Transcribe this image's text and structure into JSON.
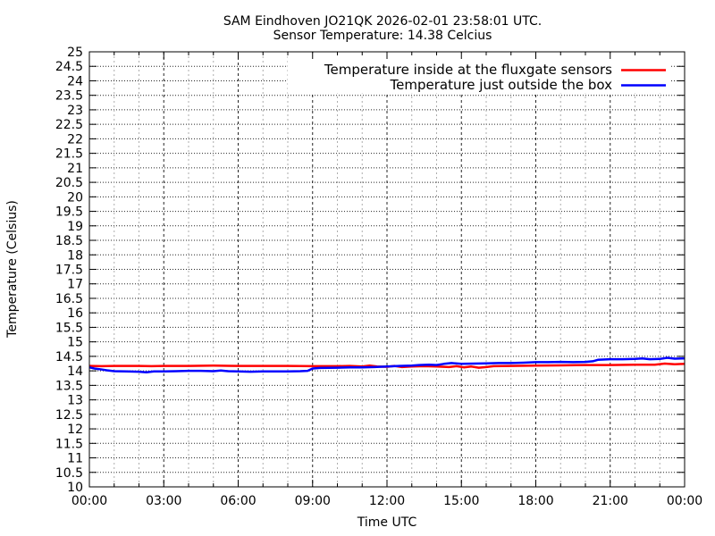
{
  "chart_data": {
    "type": "line",
    "title_lines": [
      "SAM Eindhoven JO21QK 2026-02-01 23:58:01 UTC.",
      "Sensor Temperature: 14.38 Celcius"
    ],
    "xlabel": "Time UTC",
    "ylabel": "Temperature (Celsius)",
    "xlim": [
      0,
      24
    ],
    "ylim": [
      10,
      25
    ],
    "y_tick_interval": 0.5,
    "x_major_tick_hours": 3,
    "x_minor_tick_hours": 1,
    "x_tick_labels": [
      "00:00",
      "03:00",
      "06:00",
      "09:00",
      "12:00",
      "15:00",
      "18:00",
      "21:00",
      "00:00"
    ],
    "grid": true,
    "legend_position": "top-right-inside",
    "background_color": "#ffffff",
    "series": [
      {
        "name": "Temperature inside at the fluxgate sensors",
        "color": "#ff0000",
        "points": [
          [
            0,
            14.17
          ],
          [
            0.5,
            14.16
          ],
          [
            1,
            14.17
          ],
          [
            1.5,
            14.17
          ],
          [
            2,
            14.17
          ],
          [
            2.5,
            14.16
          ],
          [
            3,
            14.17
          ],
          [
            4,
            14.17
          ],
          [
            5,
            14.18
          ],
          [
            6,
            14.17
          ],
          [
            7,
            14.17
          ],
          [
            8,
            14.17
          ],
          [
            9,
            14.16
          ],
          [
            10,
            14.16
          ],
          [
            10.5,
            14.17
          ],
          [
            11,
            14.15
          ],
          [
            11.3,
            14.18
          ],
          [
            11.6,
            14.15
          ],
          [
            12,
            14.14
          ],
          [
            12.3,
            14.17
          ],
          [
            12.6,
            14.13
          ],
          [
            13,
            14.15
          ],
          [
            13.5,
            14.16
          ],
          [
            14,
            14.15
          ],
          [
            14.5,
            14.13
          ],
          [
            14.8,
            14.16
          ],
          [
            15.1,
            14.12
          ],
          [
            15.4,
            14.15
          ],
          [
            15.7,
            14.11
          ],
          [
            16,
            14.13
          ],
          [
            16.3,
            14.16
          ],
          [
            17,
            14.17
          ],
          [
            18,
            14.18
          ],
          [
            19,
            14.19
          ],
          [
            20,
            14.2
          ],
          [
            21,
            14.2
          ],
          [
            22,
            14.21
          ],
          [
            22.8,
            14.21
          ],
          [
            23.2,
            14.25
          ],
          [
            23.6,
            14.23
          ],
          [
            24,
            14.24
          ]
        ]
      },
      {
        "name": "Temperature just outside the box",
        "color": "#0000ff",
        "points": [
          [
            0,
            14.12
          ],
          [
            0.2,
            14.08
          ],
          [
            0.4,
            14.06
          ],
          [
            0.7,
            14.02
          ],
          [
            1,
            13.99
          ],
          [
            1.5,
            13.98
          ],
          [
            2,
            13.97
          ],
          [
            2.3,
            13.95
          ],
          [
            2.6,
            13.98
          ],
          [
            3,
            13.98
          ],
          [
            3.5,
            13.99
          ],
          [
            4,
            14.0
          ],
          [
            4.5,
            14.0
          ],
          [
            5,
            13.99
          ],
          [
            5.3,
            14.01
          ],
          [
            5.6,
            13.99
          ],
          [
            6,
            13.98
          ],
          [
            6.5,
            13.97
          ],
          [
            7,
            13.98
          ],
          [
            7.5,
            13.98
          ],
          [
            8,
            13.98
          ],
          [
            8.5,
            13.99
          ],
          [
            8.8,
            14.0
          ],
          [
            9,
            14.08
          ],
          [
            9.3,
            14.1
          ],
          [
            10,
            14.11
          ],
          [
            10.5,
            14.12
          ],
          [
            11,
            14.12
          ],
          [
            11.5,
            14.13
          ],
          [
            12,
            14.15
          ],
          [
            12.5,
            14.17
          ],
          [
            13,
            14.18
          ],
          [
            13.3,
            14.2
          ],
          [
            13.7,
            14.21
          ],
          [
            14,
            14.2
          ],
          [
            14.3,
            14.24
          ],
          [
            14.6,
            14.27
          ],
          [
            15,
            14.24
          ],
          [
            15.5,
            14.25
          ],
          [
            16,
            14.26
          ],
          [
            16.5,
            14.27
          ],
          [
            17,
            14.27
          ],
          [
            17.5,
            14.28
          ],
          [
            18,
            14.3
          ],
          [
            18.5,
            14.3
          ],
          [
            19,
            14.31
          ],
          [
            19.5,
            14.3
          ],
          [
            20,
            14.31
          ],
          [
            20.3,
            14.33
          ],
          [
            20.5,
            14.38
          ],
          [
            21,
            14.4
          ],
          [
            21.5,
            14.4
          ],
          [
            22,
            14.41
          ],
          [
            22.3,
            14.43
          ],
          [
            22.6,
            14.4
          ],
          [
            23,
            14.41
          ],
          [
            23.3,
            14.45
          ],
          [
            23.6,
            14.42
          ],
          [
            24,
            14.43
          ]
        ]
      }
    ]
  }
}
